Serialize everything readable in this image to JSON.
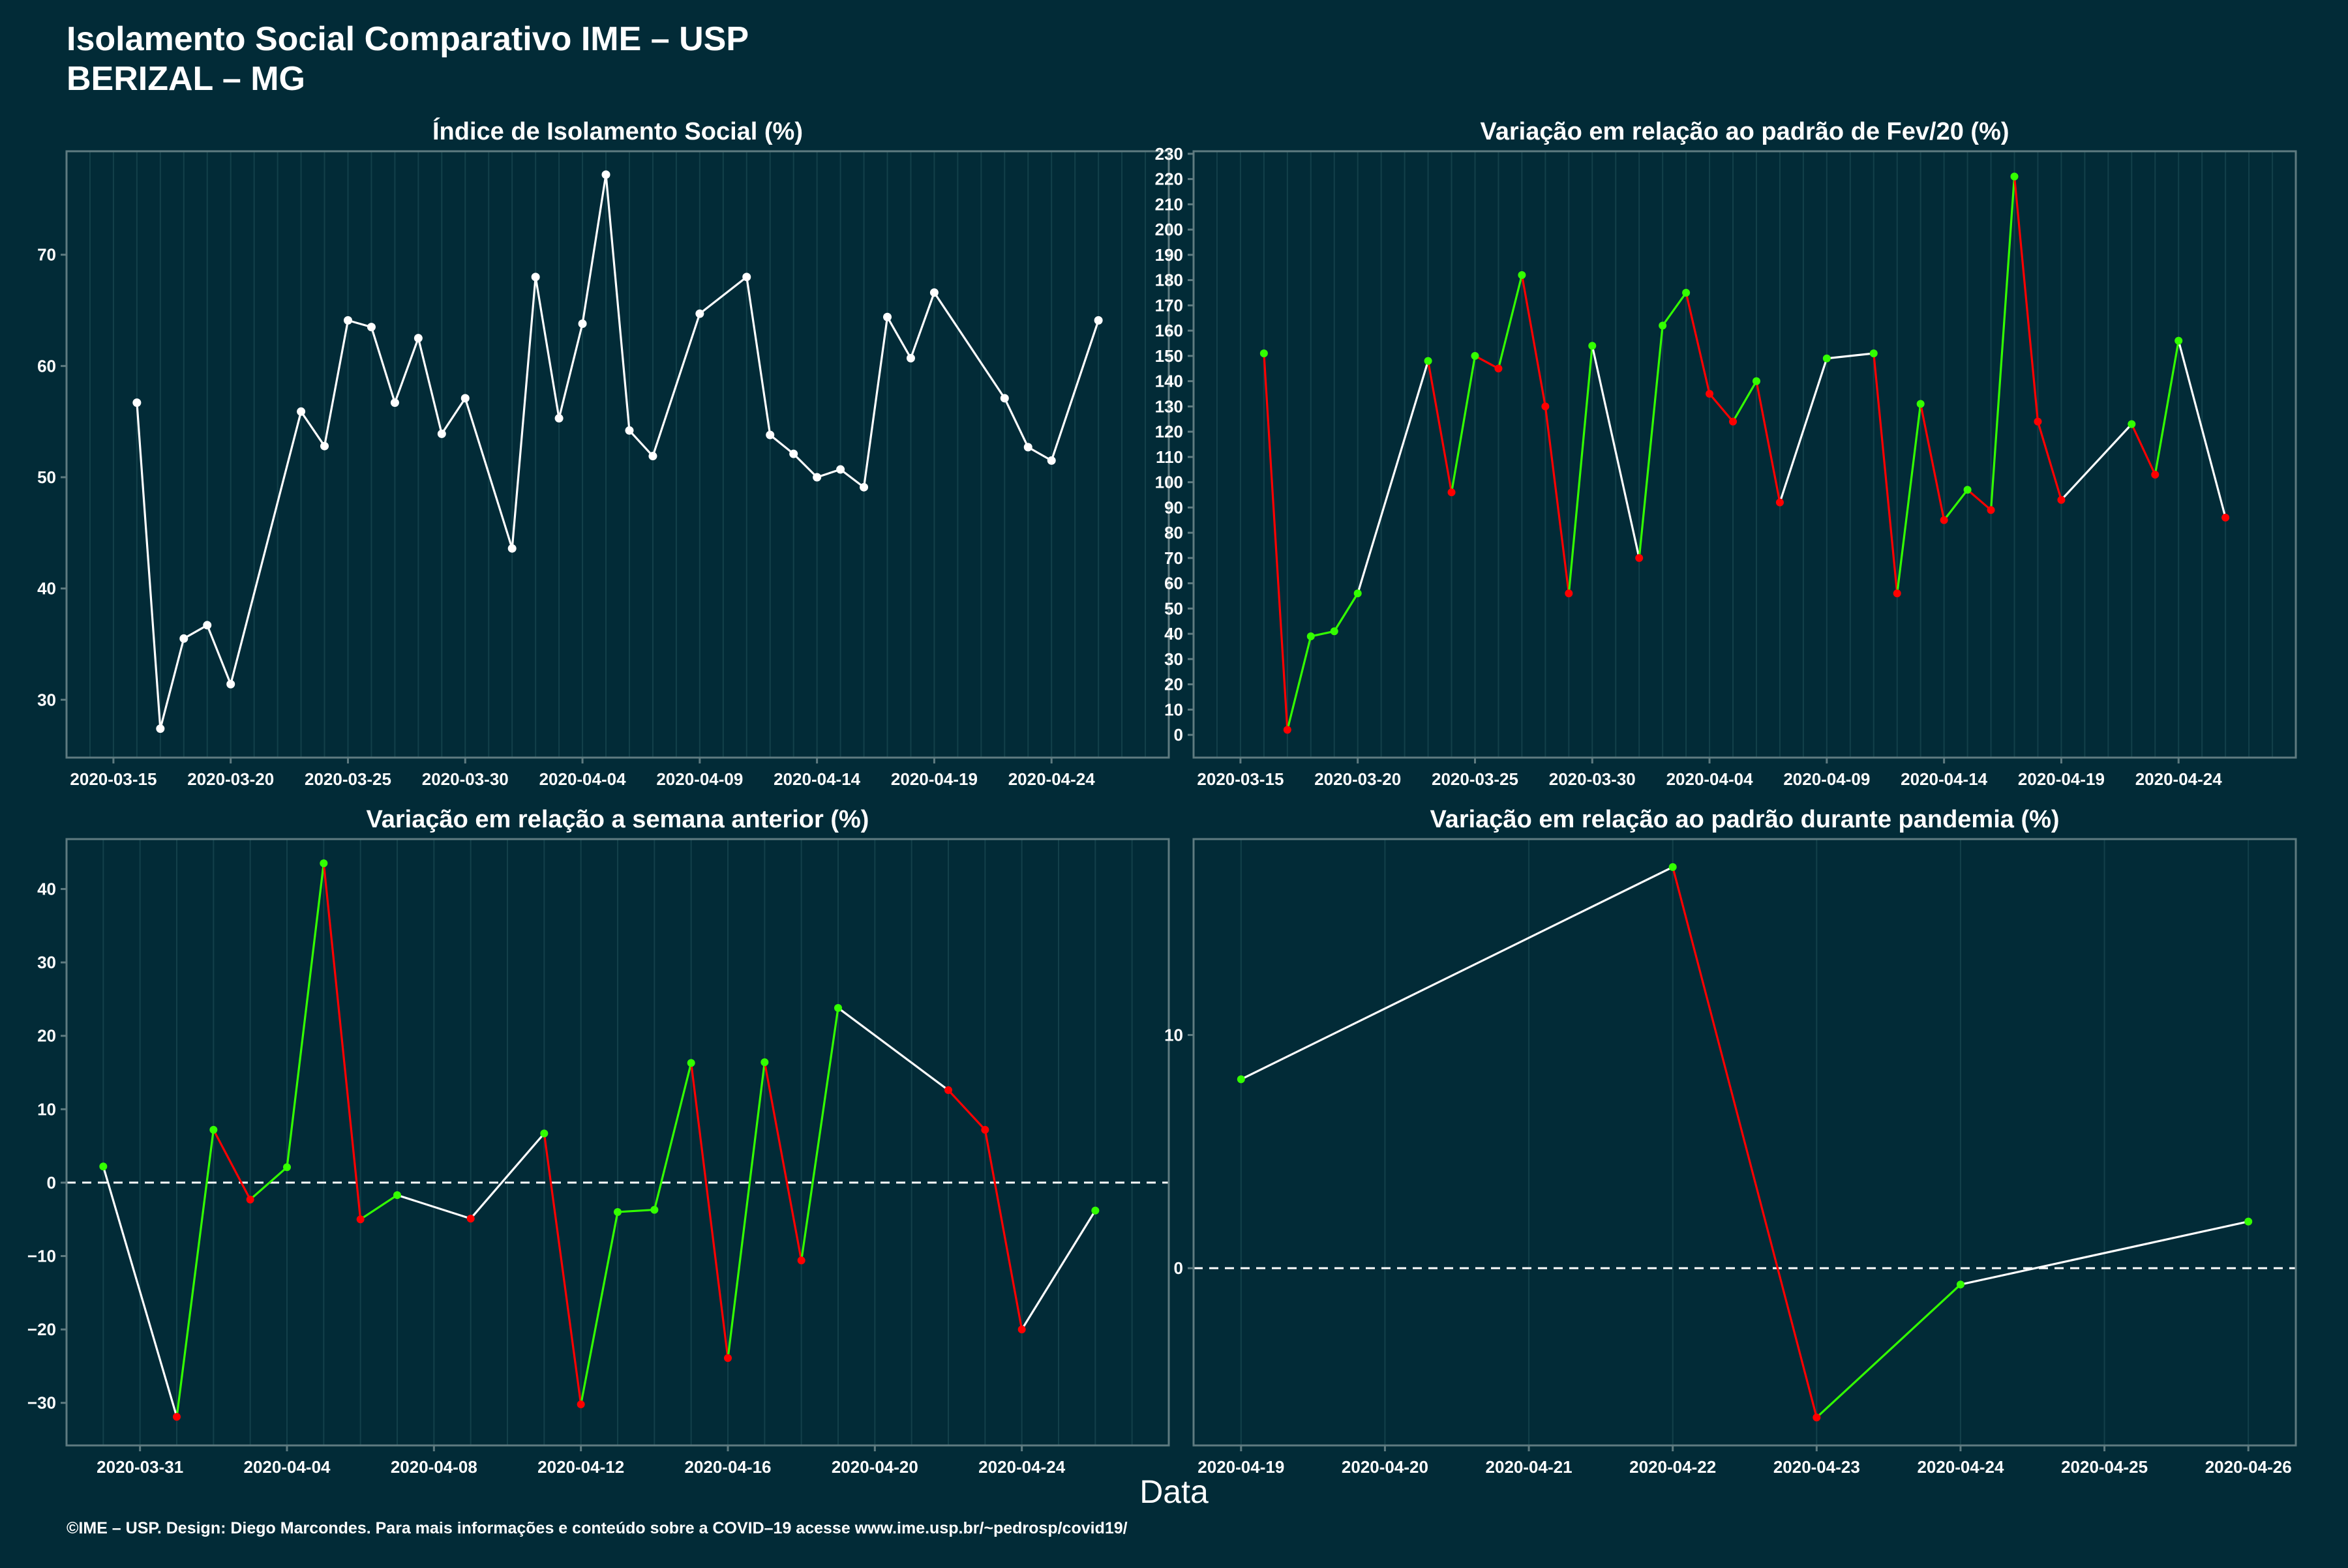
{
  "header": {
    "title": "Isolamento Social Comparativo IME – USP",
    "subtitle": "BERIZAL – MG"
  },
  "x_axis_title": "Data",
  "footer": "©IME – USP. Design: Diego Marcondes. Para mais informações e conteúdo sobre a COVID–19 acesse www.ime.usp.br/~pedrosp/covid19/",
  "colors": {
    "background": "#022b37",
    "panel_border": "#5f7b80",
    "grid": "#13404a",
    "neutral_line": "#ffffff",
    "increase": "#33ff00",
    "decrease": "#ff0000"
  },
  "chart_data": [
    {
      "type": "line",
      "title": "Índice de Isolamento Social (%)",
      "color_mode": "white",
      "xlim": [
        "2020-03-13",
        "2020-04-29"
      ],
      "ylim": [
        24.8,
        79.3
      ],
      "yticks": [
        30,
        40,
        50,
        60,
        70
      ],
      "xticks": [
        "2020-03-15",
        "2020-03-20",
        "2020-03-25",
        "2020-03-30",
        "2020-04-04",
        "2020-04-09",
        "2020-04-14",
        "2020-04-19",
        "2020-04-24"
      ],
      "zero_line": false,
      "points": [
        [
          "2020-03-16",
          56.7
        ],
        [
          "2020-03-17",
          27.4
        ],
        [
          "2020-03-18",
          35.5
        ],
        [
          "2020-03-19",
          36.7
        ],
        [
          "2020-03-20",
          31.4
        ],
        [
          "2020-03-23",
          55.9
        ],
        [
          "2020-03-24",
          52.8
        ],
        [
          "2020-03-25",
          64.1
        ],
        [
          "2020-03-26",
          63.5
        ],
        [
          "2020-03-27",
          56.7
        ],
        [
          "2020-03-28",
          62.5
        ],
        [
          "2020-03-29",
          53.9
        ],
        [
          "2020-03-30",
          57.1
        ],
        [
          "2020-04-01",
          43.6
        ],
        [
          "2020-04-02",
          68.0
        ],
        [
          "2020-04-03",
          55.3
        ],
        [
          "2020-04-04",
          63.8
        ],
        [
          "2020-04-05",
          77.2
        ],
        [
          "2020-04-06",
          54.2
        ],
        [
          "2020-04-07",
          51.9
        ],
        [
          "2020-04-09",
          64.7
        ],
        [
          "2020-04-11",
          68.0
        ],
        [
          "2020-04-12",
          53.8
        ],
        [
          "2020-04-13",
          52.1
        ],
        [
          "2020-04-14",
          50.0
        ],
        [
          "2020-04-15",
          50.7
        ],
        [
          "2020-04-16",
          49.1
        ],
        [
          "2020-04-17",
          64.4
        ],
        [
          "2020-04-18",
          60.7
        ],
        [
          "2020-04-19",
          66.6
        ],
        [
          "2020-04-22",
          57.1
        ],
        [
          "2020-04-23",
          52.7
        ],
        [
          "2020-04-24",
          51.5
        ],
        [
          "2020-04-26",
          64.1
        ]
      ]
    },
    {
      "type": "line",
      "title": "Variação em relação ao padrão de Fev/20 (%)",
      "color_mode": "trend",
      "xlim": [
        "2020-03-13",
        "2020-04-29"
      ],
      "ylim": [
        -9,
        231
      ],
      "yticks": [
        0,
        10,
        20,
        30,
        40,
        50,
        60,
        70,
        80,
        90,
        100,
        110,
        120,
        130,
        140,
        150,
        160,
        170,
        180,
        190,
        200,
        210,
        220,
        230
      ],
      "xticks": [
        "2020-03-15",
        "2020-03-20",
        "2020-03-25",
        "2020-03-30",
        "2020-04-04",
        "2020-04-09",
        "2020-04-14",
        "2020-04-19",
        "2020-04-24"
      ],
      "zero_line": false,
      "points": [
        [
          "2020-03-16",
          151
        ],
        [
          "2020-03-17",
          2
        ],
        [
          "2020-03-18",
          39
        ],
        [
          "2020-03-19",
          41
        ],
        [
          "2020-03-20",
          56
        ],
        [
          "2020-03-23",
          148
        ],
        [
          "2020-03-24",
          96
        ],
        [
          "2020-03-25",
          150
        ],
        [
          "2020-03-26",
          145
        ],
        [
          "2020-03-27",
          182
        ],
        [
          "2020-03-28",
          130
        ],
        [
          "2020-03-29",
          56
        ],
        [
          "2020-03-30",
          154
        ],
        [
          "2020-04-01",
          70
        ],
        [
          "2020-04-02",
          162
        ],
        [
          "2020-04-03",
          175
        ],
        [
          "2020-04-04",
          135
        ],
        [
          "2020-04-05",
          124
        ],
        [
          "2020-04-06",
          140
        ],
        [
          "2020-04-07",
          92
        ],
        [
          "2020-04-09",
          149
        ],
        [
          "2020-04-11",
          151
        ],
        [
          "2020-04-12",
          56
        ],
        [
          "2020-04-13",
          131
        ],
        [
          "2020-04-14",
          85
        ],
        [
          "2020-04-15",
          97
        ],
        [
          "2020-04-16",
          89
        ],
        [
          "2020-04-17",
          221
        ],
        [
          "2020-04-18",
          124
        ],
        [
          "2020-04-19",
          93
        ],
        [
          "2020-04-22",
          123
        ],
        [
          "2020-04-23",
          103
        ],
        [
          "2020-04-24",
          156
        ],
        [
          "2020-04-26",
          86
        ]
      ]
    },
    {
      "type": "line",
      "title": "Variação em relação a semana anterior (%)",
      "color_mode": "trend",
      "xlim": [
        "2020-03-29",
        "2020-04-28"
      ],
      "ylim": [
        -35.8,
        46.8
      ],
      "yticks": [
        -30,
        -20,
        -10,
        0,
        10,
        20,
        30,
        40
      ],
      "xticks": [
        "2020-03-31",
        "2020-04-04",
        "2020-04-08",
        "2020-04-12",
        "2020-04-16",
        "2020-04-20",
        "2020-04-24"
      ],
      "zero_line": true,
      "points": [
        [
          "2020-03-30",
          2.2
        ],
        [
          "2020-04-01",
          -31.9
        ],
        [
          "2020-04-02",
          7.2
        ],
        [
          "2020-04-03",
          -2.3
        ],
        [
          "2020-04-04",
          2.1
        ],
        [
          "2020-04-05",
          43.5
        ],
        [
          "2020-04-06",
          -5.0
        ],
        [
          "2020-04-07",
          -1.7
        ],
        [
          "2020-04-09",
          -4.9
        ],
        [
          "2020-04-11",
          6.7
        ],
        [
          "2020-04-12",
          -30.2
        ],
        [
          "2020-04-13",
          -4.0
        ],
        [
          "2020-04-14",
          -3.7
        ],
        [
          "2020-04-15",
          16.3
        ],
        [
          "2020-04-16",
          -23.9
        ],
        [
          "2020-04-17",
          16.4
        ],
        [
          "2020-04-18",
          -10.6
        ],
        [
          "2020-04-19",
          23.8
        ],
        [
          "2020-04-22",
          12.6
        ],
        [
          "2020-04-23",
          7.2
        ],
        [
          "2020-04-24",
          -20.0
        ],
        [
          "2020-04-26",
          -3.8
        ]
      ]
    },
    {
      "type": "line",
      "title": "Variação em relação ao padrão durante pandemia (%)",
      "color_mode": "trend",
      "xlim": [
        "2020-04-18.67",
        "2020-04-26.33"
      ],
      "ylim": [
        -7.6,
        18.4
      ],
      "yticks": [
        0,
        10
      ],
      "xticks": [
        "2020-04-19",
        "2020-04-20",
        "2020-04-21",
        "2020-04-22",
        "2020-04-23",
        "2020-04-24",
        "2020-04-25",
        "2020-04-26"
      ],
      "zero_line": true,
      "points": [
        [
          "2020-04-19",
          8.1
        ],
        [
          "2020-04-22",
          17.2
        ],
        [
          "2020-04-23",
          -6.4
        ],
        [
          "2020-04-24",
          -0.7
        ],
        [
          "2020-04-26",
          2.0
        ]
      ]
    }
  ]
}
